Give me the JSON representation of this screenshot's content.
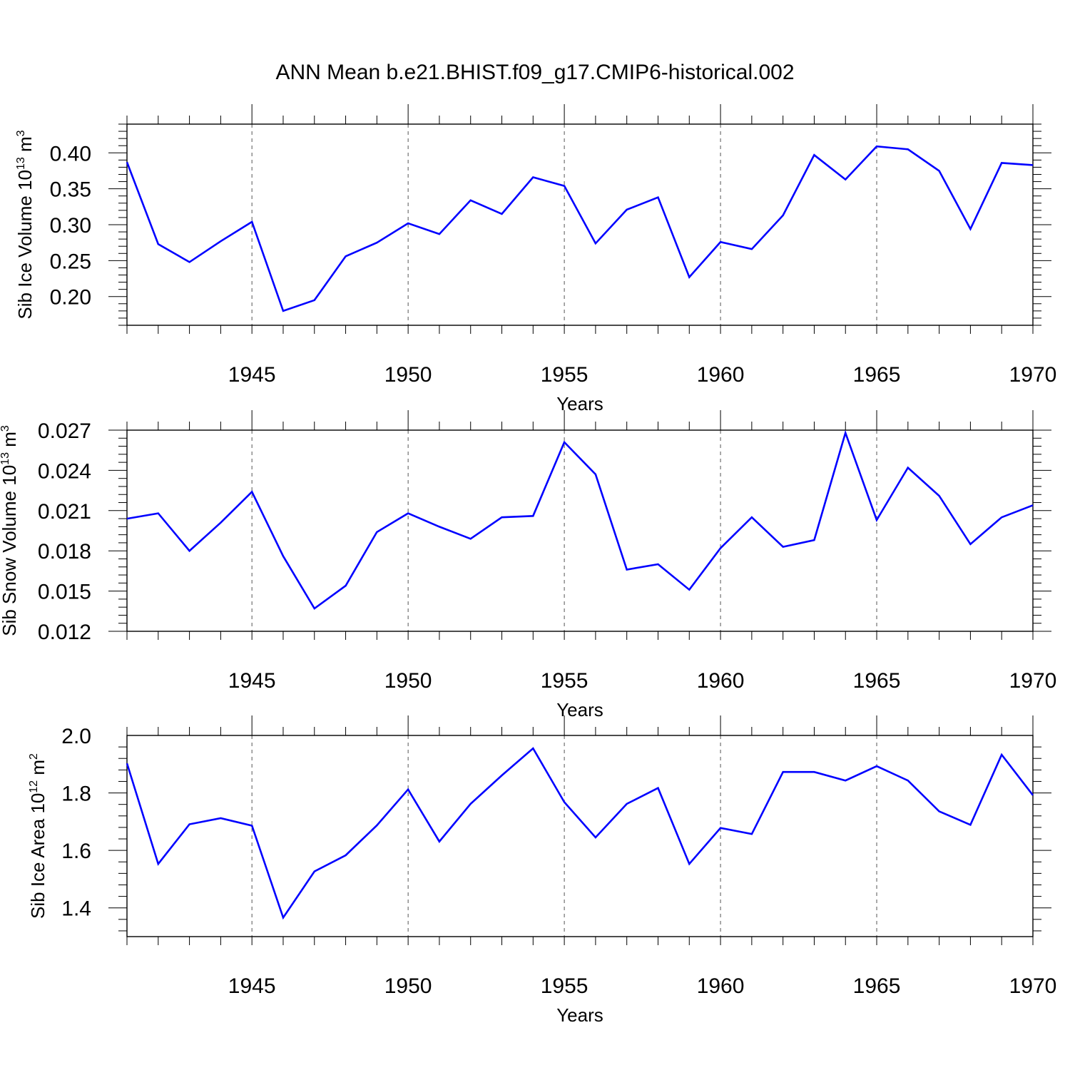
{
  "title": "ANN Mean b.e21.BHIST.f09_g17.CMIP6-historical.002",
  "colors": {
    "line": "#0000ff",
    "axis": "#000000",
    "grid": "#555555"
  },
  "chart_data": [
    {
      "type": "line",
      "ylabel": {
        "main": "Sib Ice Volume 10",
        "exp": "13",
        "unit": " m",
        "unit_exp": "3"
      },
      "xlabel": "Years",
      "xlim": [
        1941,
        1970
      ],
      "xticks": [
        "1945",
        "1950",
        "1955",
        "1960",
        "1965",
        "1970"
      ],
      "ylim": [
        0.16,
        0.44
      ],
      "yticks": [
        "0.20",
        "0.25",
        "0.30",
        "0.35",
        "0.40"
      ],
      "grid": "vertical dashed at major x ticks",
      "x": [
        1941,
        1942,
        1943,
        1944,
        1945,
        1946,
        1947,
        1948,
        1949,
        1950,
        1951,
        1952,
        1953,
        1954,
        1955,
        1956,
        1957,
        1958,
        1959,
        1960,
        1961,
        1962,
        1963,
        1964,
        1965,
        1966,
        1967,
        1968,
        1969,
        1970
      ],
      "values": [
        0.387,
        0.273,
        0.248,
        0.277,
        0.304,
        0.18,
        0.195,
        0.256,
        0.275,
        0.302,
        0.287,
        0.334,
        0.315,
        0.366,
        0.354,
        0.274,
        0.321,
        0.338,
        0.227,
        0.276,
        0.266,
        0.313,
        0.397,
        0.363,
        0.409,
        0.405,
        0.375,
        0.294,
        0.386,
        0.383
      ]
    },
    {
      "type": "line",
      "ylabel": {
        "main": "Sib Snow Volume 10",
        "exp": "13",
        "unit": " m",
        "unit_exp": "3"
      },
      "xlabel": "Years",
      "xlim": [
        1941,
        1970
      ],
      "xticks": [
        "1945",
        "1950",
        "1955",
        "1960",
        "1965",
        "1970"
      ],
      "ylim": [
        0.012,
        0.027
      ],
      "yticks": [
        "0.012",
        "0.015",
        "0.018",
        "0.021",
        "0.024",
        "0.027"
      ],
      "grid": "vertical dashed at major x ticks",
      "x": [
        1941,
        1942,
        1943,
        1944,
        1945,
        1946,
        1947,
        1948,
        1949,
        1950,
        1951,
        1952,
        1953,
        1954,
        1955,
        1956,
        1957,
        1958,
        1959,
        1960,
        1961,
        1962,
        1963,
        1964,
        1965,
        1966,
        1967,
        1968,
        1969,
        1970
      ],
      "values": [
        0.0204,
        0.0208,
        0.018,
        0.0201,
        0.0224,
        0.0176,
        0.0137,
        0.0154,
        0.0194,
        0.0208,
        0.0198,
        0.0189,
        0.0205,
        0.0206,
        0.0261,
        0.0237,
        0.0166,
        0.017,
        0.0151,
        0.0182,
        0.0205,
        0.0183,
        0.0188,
        0.0268,
        0.0203,
        0.0242,
        0.0221,
        0.0185,
        0.0205,
        0.0214
      ]
    },
    {
      "type": "line",
      "ylabel": {
        "main": "Sib Ice Area 10",
        "exp": "12",
        "unit": " m",
        "unit_exp": "2"
      },
      "xlabel": "Years",
      "xlim": [
        1941,
        1970
      ],
      "xticks": [
        "1945",
        "1950",
        "1955",
        "1960",
        "1965",
        "1970"
      ],
      "ylim": [
        1.3,
        2.0
      ],
      "yticks": [
        "1.4",
        "1.6",
        "1.8",
        "2.0"
      ],
      "grid": "vertical dashed at major x ticks",
      "x": [
        1941,
        1942,
        1943,
        1944,
        1945,
        1946,
        1947,
        1948,
        1949,
        1950,
        1951,
        1952,
        1953,
        1954,
        1955,
        1956,
        1957,
        1958,
        1959,
        1960,
        1961,
        1962,
        1963,
        1964,
        1965,
        1966,
        1967,
        1968,
        1969,
        1970
      ],
      "values": [
        1.903,
        1.553,
        1.691,
        1.712,
        1.686,
        1.366,
        1.527,
        1.583,
        1.687,
        1.812,
        1.631,
        1.762,
        1.861,
        1.955,
        1.768,
        1.645,
        1.762,
        1.817,
        1.553,
        1.678,
        1.657,
        1.873,
        1.873,
        1.843,
        1.893,
        1.843,
        1.736,
        1.689,
        1.933,
        1.792
      ]
    }
  ]
}
